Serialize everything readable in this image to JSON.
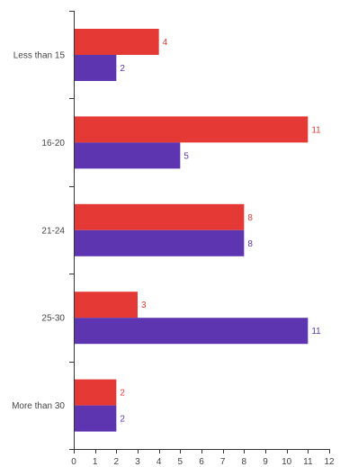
{
  "chart_data": {
    "type": "bar",
    "orientation": "horizontal",
    "categories": [
      "Less than 15",
      "16-20",
      "21-24",
      "25-30",
      "More than 30"
    ],
    "series": [
      {
        "color": "#e53935",
        "values": [
          4,
          11,
          8,
          3,
          2
        ]
      },
      {
        "color": "#5e35b1",
        "values": [
          2,
          5,
          8,
          11,
          2
        ]
      }
    ],
    "xlim": [
      0,
      12
    ],
    "x_ticks": [
      0,
      1,
      2,
      3,
      4,
      5,
      6,
      7,
      8,
      9,
      10,
      11,
      12
    ],
    "data_labels": true,
    "grid": false,
    "title": "",
    "xlabel": "",
    "ylabel": ""
  }
}
